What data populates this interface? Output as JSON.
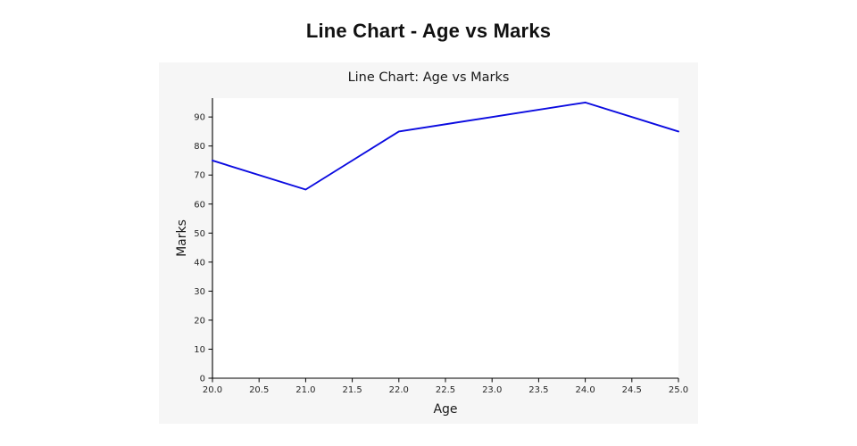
{
  "page": {
    "title": "Line Chart - Age vs Marks"
  },
  "chart_data": {
    "type": "line",
    "title": "Line Chart: Age vs Marks",
    "xlabel": "Age",
    "ylabel": "Marks",
    "x": [
      20,
      21,
      22,
      23,
      24,
      25
    ],
    "y": [
      75,
      65,
      85,
      90,
      95,
      85
    ],
    "xlim": [
      20,
      25
    ],
    "ylim": [
      0,
      96.5
    ],
    "x_tick_labels": [
      "20.0",
      "20.5",
      "21.0",
      "21.5",
      "22.0",
      "22.5",
      "23.0",
      "23.5",
      "24.0",
      "24.5",
      "25.0"
    ],
    "y_tick_labels": [
      "0",
      "10",
      "20",
      "30",
      "40",
      "50",
      "60",
      "70",
      "80",
      "90"
    ],
    "line_color": "#0b0be0",
    "axis_color": "#000000",
    "tick_label_color": "#262626",
    "figure_background": "#f6f6f6",
    "plot_background": "#ffffff",
    "grid": false,
    "legend": "none"
  }
}
